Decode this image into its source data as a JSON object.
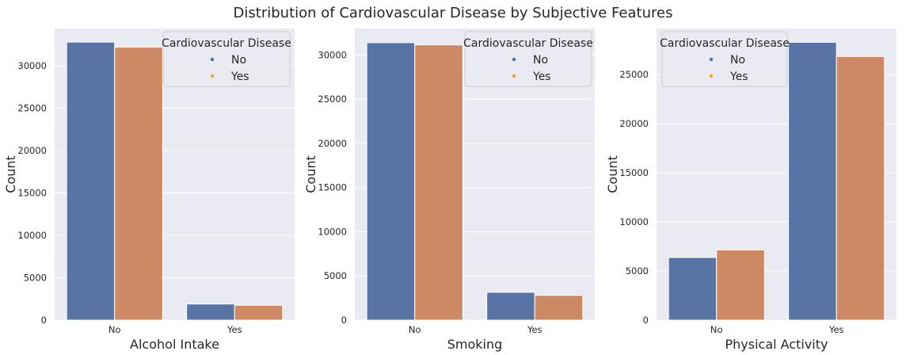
{
  "title": "Distribution of Cardiovascular Disease by Subjective Features",
  "colors": {
    "background": "#eaeaf2",
    "grid": "#ffffff",
    "no": "#5874a5",
    "yes": "#cd8963",
    "legend_no": "#4c72b0",
    "legend_yes": "#ff9f1c"
  },
  "legend": {
    "title": "Cardiovascular Disease",
    "entries": [
      "No",
      "Yes"
    ]
  },
  "chart_data": [
    {
      "type": "bar",
      "xlabel": "Alcohol Intake",
      "ylabel": "Count",
      "categories": [
        "No",
        "Yes"
      ],
      "series": [
        {
          "name": "No",
          "values": [
            32800,
            1900
          ]
        },
        {
          "name": "Yes",
          "values": [
            32200,
            1750
          ]
        }
      ],
      "ylim": [
        0,
        34400
      ],
      "yticks": [
        0,
        5000,
        10000,
        15000,
        20000,
        25000,
        30000
      ],
      "legend_position": "top-right",
      "grid": true
    },
    {
      "type": "bar",
      "xlabel": "Smoking",
      "ylabel": "Count",
      "categories": [
        "No",
        "Yes"
      ],
      "series": [
        {
          "name": "No",
          "values": [
            31400,
            3150
          ]
        },
        {
          "name": "Yes",
          "values": [
            31150,
            2800
          ]
        }
      ],
      "ylim": [
        0,
        33000
      ],
      "yticks": [
        0,
        5000,
        10000,
        15000,
        20000,
        25000,
        30000
      ],
      "legend_position": "top-right",
      "grid": true
    },
    {
      "type": "bar",
      "xlabel": "Physical Activity",
      "ylabel": "Count",
      "categories": [
        "No",
        "Yes"
      ],
      "series": [
        {
          "name": "No",
          "values": [
            6380,
            28300
          ]
        },
        {
          "name": "Yes",
          "values": [
            7150,
            26850
          ]
        }
      ],
      "ylim": [
        0,
        29700
      ],
      "yticks": [
        0,
        5000,
        10000,
        15000,
        20000,
        25000
      ],
      "legend_position": "top-left",
      "grid": true
    }
  ]
}
